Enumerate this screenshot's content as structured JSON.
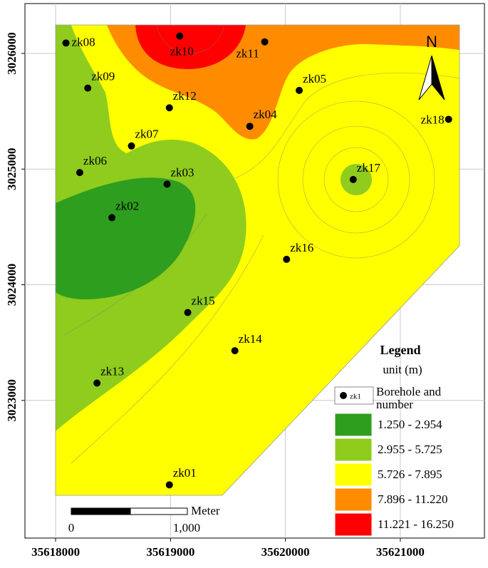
{
  "map": {
    "xlim": [
      35617733,
      35621732
    ],
    "ylim": [
      3021810,
      3026431
    ],
    "xticks": [
      35618000,
      35619000,
      35620000,
      35621000
    ],
    "yticks": [
      3023000,
      3024000,
      3025000,
      3026000
    ],
    "grid": true,
    "north": "N",
    "boreholes": [
      {
        "label": "zk08",
        "x": 35618090,
        "y": 3026090
      },
      {
        "label": "zk10",
        "x": 35619080,
        "y": 3026150
      },
      {
        "label": "zk11",
        "x": 35619820,
        "y": 3026100
      },
      {
        "label": "zk09",
        "x": 35618280,
        "y": 3025700
      },
      {
        "label": "zk12",
        "x": 35618990,
        "y": 3025530
      },
      {
        "label": "zk05",
        "x": 35620120,
        "y": 3025680
      },
      {
        "label": "zk04",
        "x": 35619690,
        "y": 3025370
      },
      {
        "label": "zk18",
        "x": 35621420,
        "y": 3025430
      },
      {
        "label": "zk07",
        "x": 35618660,
        "y": 3025200
      },
      {
        "label": "zk06",
        "x": 35618210,
        "y": 3024970
      },
      {
        "label": "zk03",
        "x": 35618970,
        "y": 3024870
      },
      {
        "label": "zk17",
        "x": 35620590,
        "y": 3024910
      },
      {
        "label": "zk02",
        "x": 35618490,
        "y": 3024580
      },
      {
        "label": "zk16",
        "x": 35620010,
        "y": 3024220
      },
      {
        "label": "zk15",
        "x": 35619150,
        "y": 3023760
      },
      {
        "label": "zk14",
        "x": 35619560,
        "y": 3023430
      },
      {
        "label": "zk13",
        "x": 35618360,
        "y": 3023150
      },
      {
        "label": "zk01",
        "x": 35618990,
        "y": 3022270
      }
    ],
    "scale_bar": {
      "unit": "Meter",
      "labels": [
        "0",
        "1,000"
      ]
    },
    "legend": {
      "title": "Legend",
      "unit": "unit (m)",
      "borehole_sample": "zk1",
      "borehole_label": [
        "Borehole and",
        "number"
      ],
      "classes": [
        {
          "label": "1.250 - 2.954",
          "color": "#2e9e1e"
        },
        {
          "label": "2.955 - 5.725",
          "color": "#8fcc1e"
        },
        {
          "label": "5.726 - 7.895",
          "color": "#ffff00"
        },
        {
          "label": "7.896 - 11.220",
          "color": "#ff8c00"
        },
        {
          "label": "11.221 - 16.250",
          "color": "#ff0000"
        }
      ]
    }
  }
}
